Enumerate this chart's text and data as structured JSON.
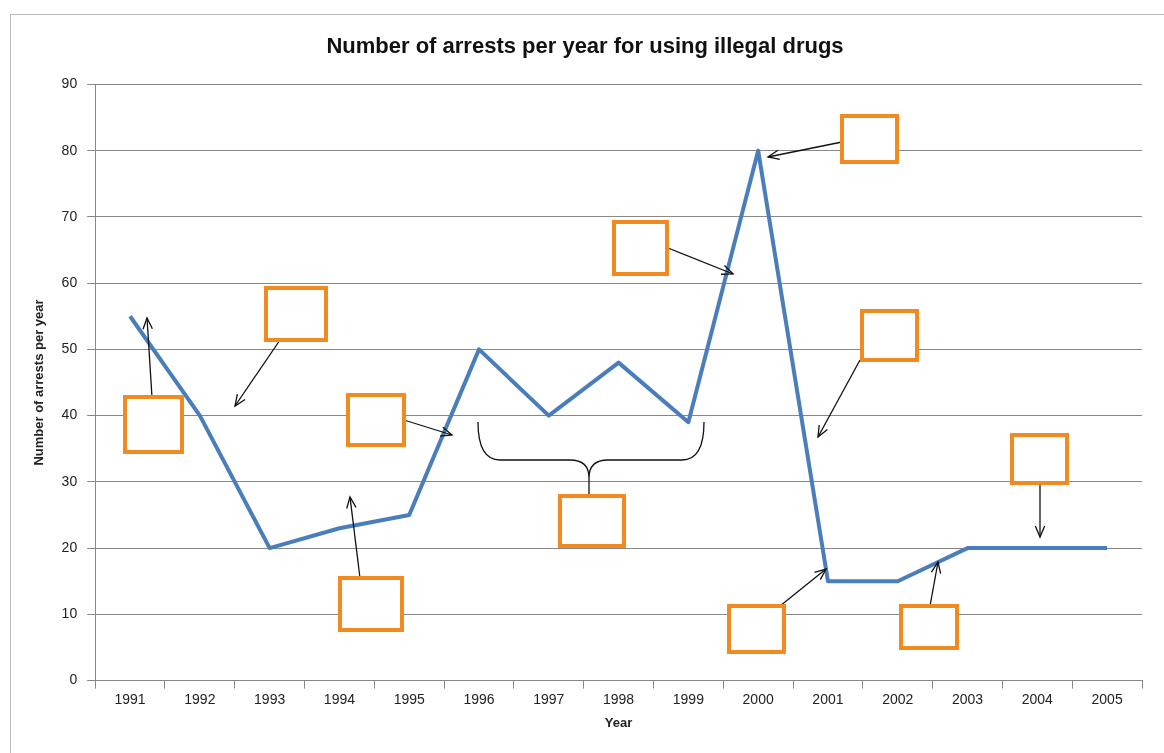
{
  "chart_data": {
    "type": "line",
    "title": "Number of arrests per year for using illegal drugs",
    "xlabel": "Year",
    "ylabel": "Number of arrests per year",
    "categories": [
      "1991",
      "1992",
      "1993",
      "1994",
      "1995",
      "1996",
      "1997",
      "1998",
      "1999",
      "2000",
      "2001",
      "2002",
      "2003",
      "2004",
      "2005"
    ],
    "series": [
      {
        "color": "#4a7ebb",
        "values": [
          55,
          40,
          20,
          23,
          25,
          50,
          40,
          48,
          39,
          80,
          15,
          15,
          20,
          20,
          20
        ]
      }
    ],
    "ylim": [
      0,
      90
    ],
    "yticks": [
      0,
      10,
      20,
      30,
      40,
      50,
      60,
      70,
      80,
      90
    ],
    "grid": "y",
    "legend": false,
    "marker": "none",
    "line_style": "solid"
  }
}
